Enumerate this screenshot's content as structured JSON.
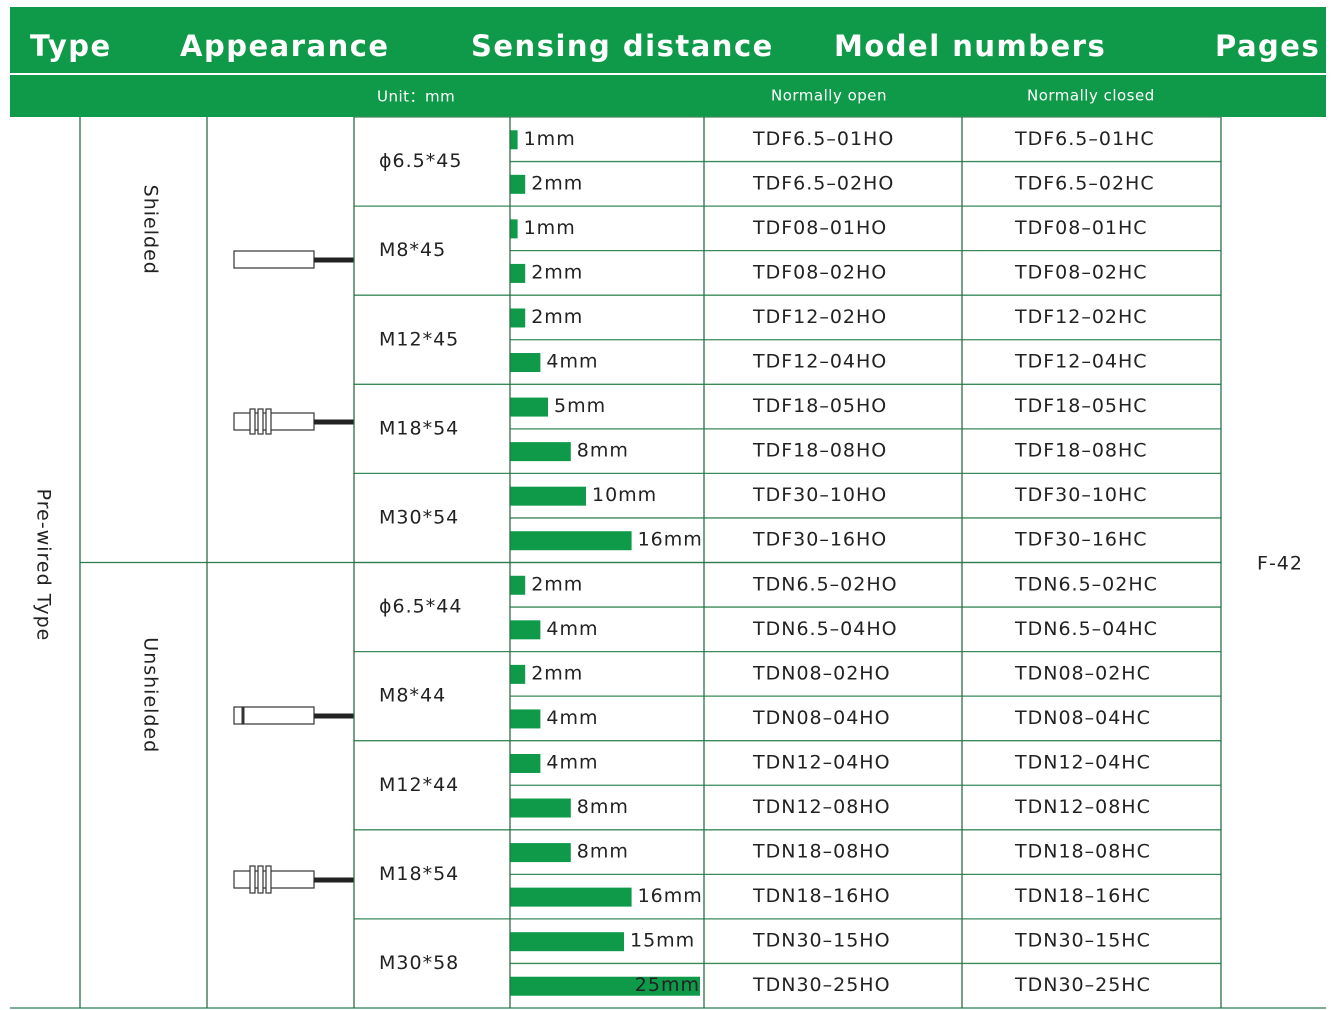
{
  "header": {
    "titles": [
      "Type",
      "Appearance",
      "Sensing distance",
      "Model numbers",
      "Pages"
    ],
    "unit": "Unit：mm",
    "normally_open": "Normally open",
    "normally_closed": "Normally closed"
  },
  "type": "Pre-wired Type",
  "page": "F-42",
  "groups": [
    {
      "shielding": "Shielded",
      "sizes": [
        {
          "size": "ϕ6.5*45",
          "rows": [
            {
              "distance": {
                "value": 1,
                "label": "1mm"
              },
              "no": "TDF6.5–01HO",
              "nc": "TDF6.5–01HC"
            },
            {
              "distance": {
                "value": 2,
                "label": "2mm"
              },
              "no": "TDF6.5–02HO",
              "nc": "TDF6.5–02HC"
            }
          ]
        },
        {
          "size": "M8*45",
          "rows": [
            {
              "distance": {
                "value": 1,
                "label": "1mm"
              },
              "no": "TDF08–01HO",
              "nc": "TDF08–01HC"
            },
            {
              "distance": {
                "value": 2,
                "label": "2mm"
              },
              "no": "TDF08–02HO",
              "nc": "TDF08–02HC"
            }
          ]
        },
        {
          "size": "M12*45",
          "rows": [
            {
              "distance": {
                "value": 2,
                "label": "2mm"
              },
              "no": "TDF12–02HO",
              "nc": "TDF12–02HC"
            },
            {
              "distance": {
                "value": 4,
                "label": "4mm"
              },
              "no": "TDF12–04HO",
              "nc": "TDF12–04HC"
            }
          ]
        },
        {
          "size": "M18*54",
          "rows": [
            {
              "distance": {
                "value": 5,
                "label": "5mm"
              },
              "no": "TDF18–05HO",
              "nc": "TDF18–05HC"
            },
            {
              "distance": {
                "value": 8,
                "label": "8mm"
              },
              "no": "TDF18–08HO",
              "nc": "TDF18–08HC"
            }
          ]
        },
        {
          "size": "M30*54",
          "rows": [
            {
              "distance": {
                "value": 10,
                "label": "10mm"
              },
              "no": "TDF30–10HO",
              "nc": "TDF30–10HC"
            },
            {
              "distance": {
                "value": 16,
                "label": "16mm"
              },
              "no": "TDF30–16HO",
              "nc": "TDF30–16HC"
            }
          ]
        }
      ]
    },
    {
      "shielding": "Unshielded",
      "sizes": [
        {
          "size": "ϕ6.5*44",
          "rows": [
            {
              "distance": {
                "value": 2,
                "label": "2mm"
              },
              "no": "TDN6.5–02HO",
              "nc": "TDN6.5–02HC"
            },
            {
              "distance": {
                "value": 4,
                "label": "4mm"
              },
              "no": "TDN6.5–04HO",
              "nc": "TDN6.5–04HC"
            }
          ]
        },
        {
          "size": "M8*44",
          "rows": [
            {
              "distance": {
                "value": 2,
                "label": "2mm"
              },
              "no": "TDN08–02HO",
              "nc": "TDN08–02HC"
            },
            {
              "distance": {
                "value": 4,
                "label": "4mm"
              },
              "no": "TDN08–04HO",
              "nc": "TDN08–04HC"
            }
          ]
        },
        {
          "size": "M12*44",
          "rows": [
            {
              "distance": {
                "value": 4,
                "label": "4mm"
              },
              "no": "TDN12–04HO",
              "nc": "TDN12–04HC"
            },
            {
              "distance": {
                "value": 8,
                "label": "8mm"
              },
              "no": "TDN12–08HO",
              "nc": "TDN12–08HC"
            }
          ]
        },
        {
          "size": "M18*54",
          "rows": [
            {
              "distance": {
                "value": 8,
                "label": "8mm"
              },
              "no": "TDN18–08HO",
              "nc": "TDN18–08HC"
            },
            {
              "distance": {
                "value": 16,
                "label": "16mm"
              },
              "no": "TDN18–16HO",
              "nc": "TDN18–16HC"
            }
          ]
        },
        {
          "size": "M30*58",
          "rows": [
            {
              "distance": {
                "value": 15,
                "label": "15mm"
              },
              "no": "TDN30–15HO",
              "nc": "TDN30–15HC"
            },
            {
              "distance": {
                "value": 25,
                "label": "25mm"
              },
              "no": "TDN30–25HO",
              "nc": "TDN30–25HC"
            }
          ]
        }
      ]
    }
  ]
}
